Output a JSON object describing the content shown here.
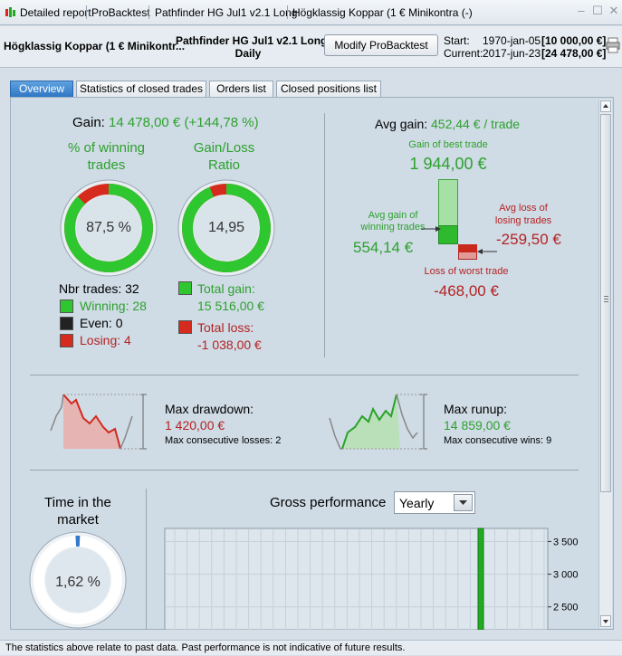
{
  "titlebar": {
    "items": [
      "Detailed report",
      "ProBacktest",
      "Pathfinder HG Jul1 v2.1 Long",
      "Högklassig Koppar (1 € Minikontra (-)"
    ]
  },
  "header": {
    "instrument": "Högklassig Koppar (1 € Minikontr...",
    "strategy": "Pathfinder HG Jul1 v2.1 Long",
    "timeframe": "Daily",
    "modify_label": "Modify ProBacktest",
    "start_label": "Start:",
    "start_date": "1970-jan-05",
    "start_value": "[10 000,00 €]",
    "current_label": "Current:",
    "current_date": "2017-jun-23",
    "current_value": "[24 478,00 €]"
  },
  "tabs": [
    "Overview",
    "Statistics of closed trades",
    "Orders list",
    "Closed positions list"
  ],
  "overview": {
    "gain_label": "Gain:",
    "gain_value": "14 478,00 € (+144,78 %)",
    "winning_title": "% of winning trades",
    "winning_value": "87,5 %",
    "winning_fraction": 0.875,
    "ratio_title": "Gain/Loss Ratio",
    "ratio_value": "14,95",
    "ratio_fraction": 0.937,
    "nbr_trades": "Nbr trades: 32",
    "winning": "Winning: 28",
    "even": "Even: 0",
    "losing": "Losing: 4",
    "total_gain_label": "Total gain:",
    "total_gain_value": "15 516,00 €",
    "total_loss_label": "Total loss:",
    "total_loss_value": "-1 038,00 €",
    "avg_gain_label": "Avg gain:",
    "avg_gain_value": "452,44 € / trade",
    "best_trade_label": "Gain of best trade",
    "best_trade_value": "1 944,00 €",
    "avg_win_label": "Avg gain of winning trades",
    "avg_win_value": "554,14 €",
    "avg_loss_label": "Avg loss of losing trades",
    "avg_loss_value": "-259,50 €",
    "worst_trade_label": "Loss of worst trade",
    "worst_trade_value": "-468,00 €",
    "max_drawdown_label": "Max drawdown:",
    "max_drawdown_value": "1 420,00 €",
    "max_consec_losses": "Max consecutive losses: 2",
    "max_runup_label": "Max runup:",
    "max_runup_value": "14 859,00 €",
    "max_consec_wins": "Max consecutive wins: 9",
    "time_in_market_label": "Time in the market",
    "time_in_market_value": "1,62 %",
    "time_in_market_fraction": 0.0162,
    "gross_perf_label": "Gross performance",
    "period_selected": "Yearly"
  },
  "chart_data": {
    "type": "bar",
    "title": "",
    "y_ticks": [
      "3 500",
      "3 000",
      "2 500"
    ],
    "ylim_visible": [
      2150,
      3700
    ],
    "bars": [
      {
        "value": 3700,
        "color": "#22aa22"
      }
    ]
  },
  "colors": {
    "win": "#2ea12e",
    "loss": "#b42323",
    "tab_active": "#3a83cf"
  },
  "footer": "The statistics above relate to past data. Past performance is not indicative of future results."
}
